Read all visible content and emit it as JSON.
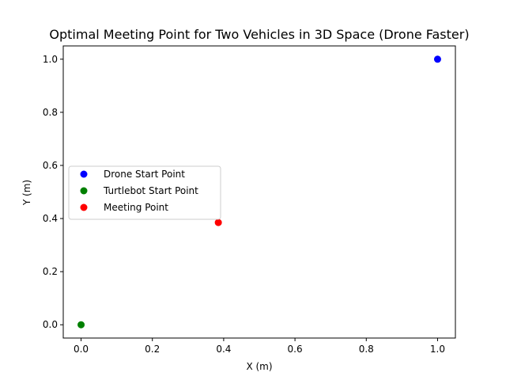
{
  "chart_data": {
    "type": "scatter",
    "title": "Optimal Meeting Point for Two Vehicles in 3D Space (Drone Faster)",
    "xlabel": "X (m)",
    "ylabel": "Y (m)",
    "xlim": [
      -0.05,
      1.05
    ],
    "ylim": [
      -0.05,
      1.05
    ],
    "xticks": [
      0.0,
      0.2,
      0.4,
      0.6,
      0.8,
      1.0
    ],
    "yticks": [
      0.0,
      0.2,
      0.4,
      0.6,
      0.8,
      1.0
    ],
    "xtick_labels": [
      "0.0",
      "0.2",
      "0.4",
      "0.6",
      "0.8",
      "1.0"
    ],
    "ytick_labels": [
      "0.0",
      "0.2",
      "0.4",
      "0.6",
      "0.8",
      "1.0"
    ],
    "grid": false,
    "legend_position": "center-left",
    "series": [
      {
        "name": "Drone Start Point",
        "color": "#0000ff",
        "x": [
          1.0
        ],
        "y": [
          1.0
        ]
      },
      {
        "name": "Turtlebot Start Point",
        "color": "#008000",
        "x": [
          0.0
        ],
        "y": [
          0.0
        ]
      },
      {
        "name": "Meeting Point",
        "color": "#ff0000",
        "x": [
          0.385
        ],
        "y": [
          0.385
        ]
      }
    ]
  }
}
